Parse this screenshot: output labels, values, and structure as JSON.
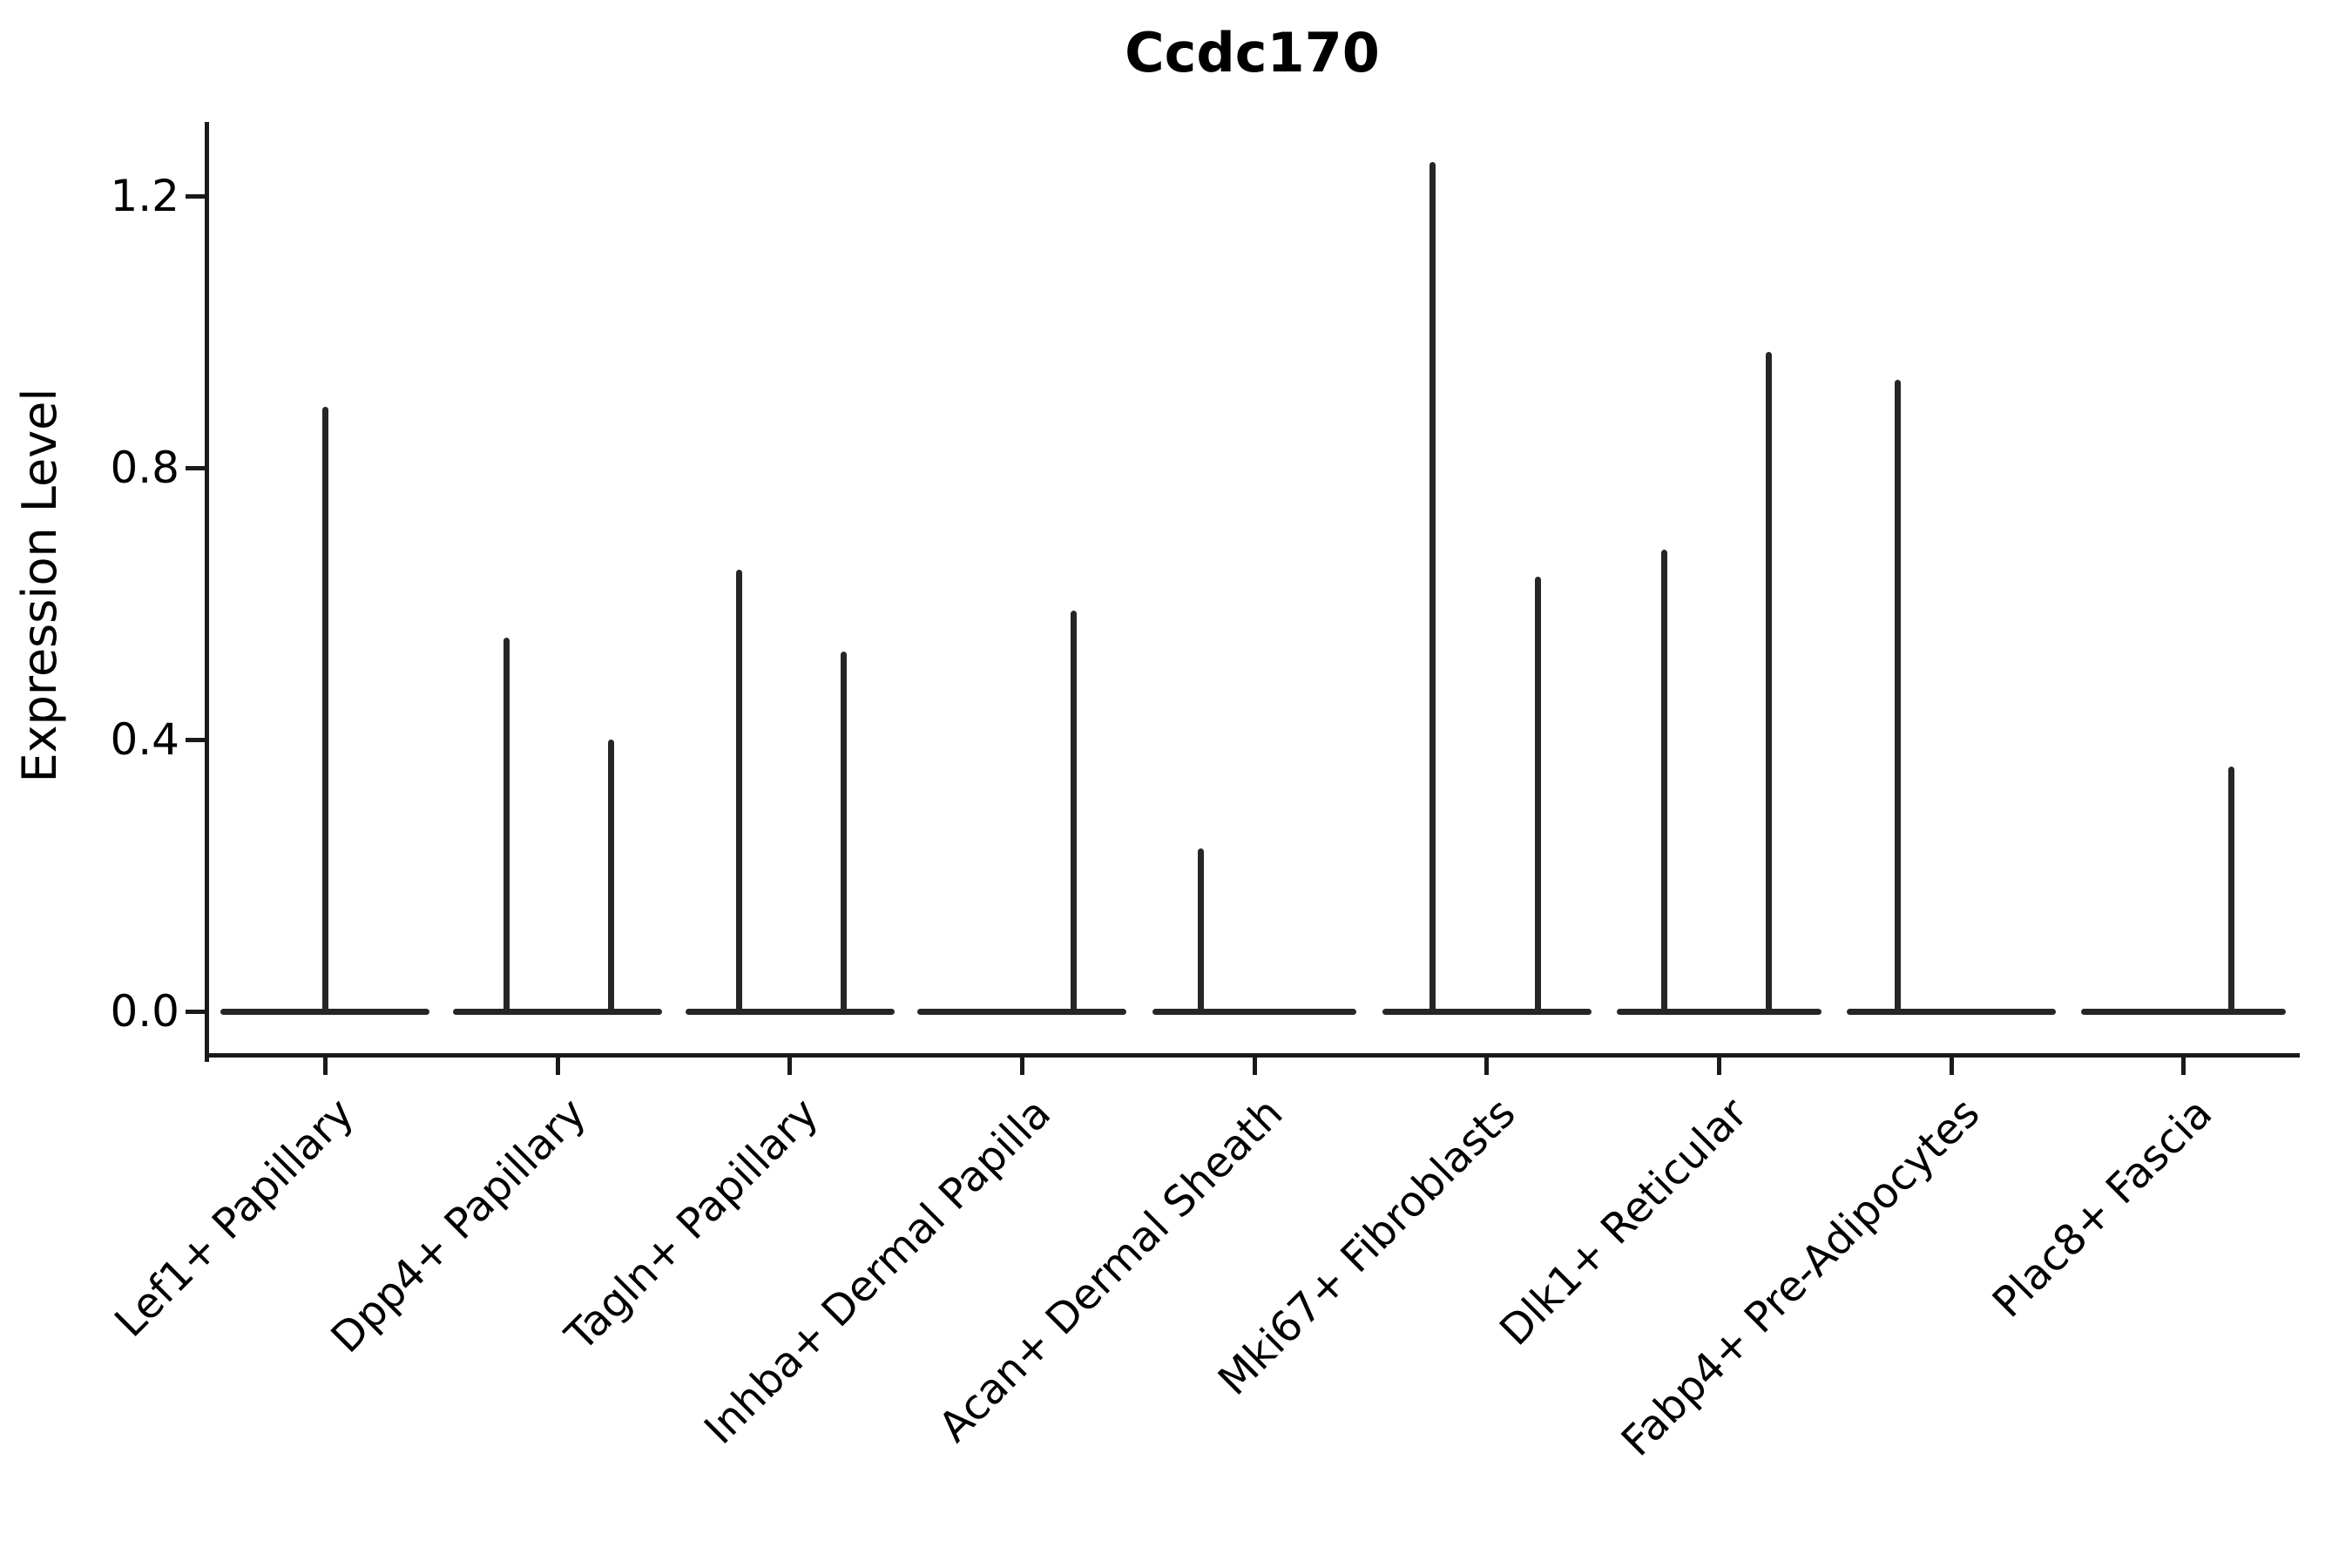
{
  "chart_data": {
    "type": "violin",
    "title": "Ccdc170",
    "xlabel": "",
    "ylabel": "Expression Level",
    "ylim": [
      -0.06,
      1.32
    ],
    "yticks": [
      0.0,
      0.4,
      0.8,
      1.2
    ],
    "grid": false,
    "legend": false,
    "categories": [
      "Lef1+ Papillary",
      "Dpp4+ Papillary",
      "Tagln+ Papillary",
      "Inhba+ Dermal Papilla",
      "Acan+ Dermal Sheath",
      "Mki67+ Fibroblasts",
      "Dlk1+ Reticular",
      "Fabp4+ Pre-Adipocytes",
      "Plac8+ Fascia"
    ],
    "series": [
      {
        "name": "Lef1+ Papillary",
        "baseline_value": 0.0,
        "baseline_halfwidth_frac": 0.45,
        "spikes": [
          {
            "offset_frac": 0.0,
            "value": 0.89
          }
        ]
      },
      {
        "name": "Dpp4+ Papillary",
        "baseline_value": 0.0,
        "baseline_halfwidth_frac": 0.45,
        "spikes": [
          {
            "offset_frac": -0.22,
            "value": 0.55
          },
          {
            "offset_frac": 0.23,
            "value": 0.4
          }
        ]
      },
      {
        "name": "Tagln+ Papillary",
        "baseline_value": 0.0,
        "baseline_halfwidth_frac": 0.45,
        "spikes": [
          {
            "offset_frac": -0.22,
            "value": 0.65
          },
          {
            "offset_frac": 0.23,
            "value": 0.53
          }
        ]
      },
      {
        "name": "Inhba+ Dermal Papilla",
        "baseline_value": 0.0,
        "baseline_halfwidth_frac": 0.45,
        "spikes": [
          {
            "offset_frac": 0.22,
            "value": 0.59
          }
        ]
      },
      {
        "name": "Acan+ Dermal Sheath",
        "baseline_value": 0.0,
        "baseline_halfwidth_frac": 0.44,
        "spikes": [
          {
            "offset_frac": -0.23,
            "value": 0.24
          }
        ]
      },
      {
        "name": "Mki67+ Fibroblasts",
        "baseline_value": 0.0,
        "baseline_halfwidth_frac": 0.45,
        "spikes": [
          {
            "offset_frac": -0.235,
            "value": 1.25
          },
          {
            "offset_frac": 0.22,
            "value": 0.64
          }
        ]
      },
      {
        "name": "Dlk1+ Reticular",
        "baseline_value": 0.0,
        "baseline_halfwidth_frac": 0.44,
        "spikes": [
          {
            "offset_frac": -0.235,
            "value": 0.68
          },
          {
            "offset_frac": 0.215,
            "value": 0.97
          }
        ]
      },
      {
        "name": "Fabp4+ Pre-Adipocytes",
        "baseline_value": 0.0,
        "baseline_halfwidth_frac": 0.45,
        "spikes": [
          {
            "offset_frac": -0.23,
            "value": 0.93
          }
        ]
      },
      {
        "name": "Plac8+ Fascia",
        "baseline_value": 0.0,
        "baseline_halfwidth_frac": 0.44,
        "spikes": [
          {
            "offset_frac": 0.205,
            "value": 0.36
          }
        ]
      }
    ]
  },
  "colors": {
    "violin": "#262626",
    "axis": "#1a1a1a",
    "text": "#000000",
    "background": "#ffffff"
  }
}
